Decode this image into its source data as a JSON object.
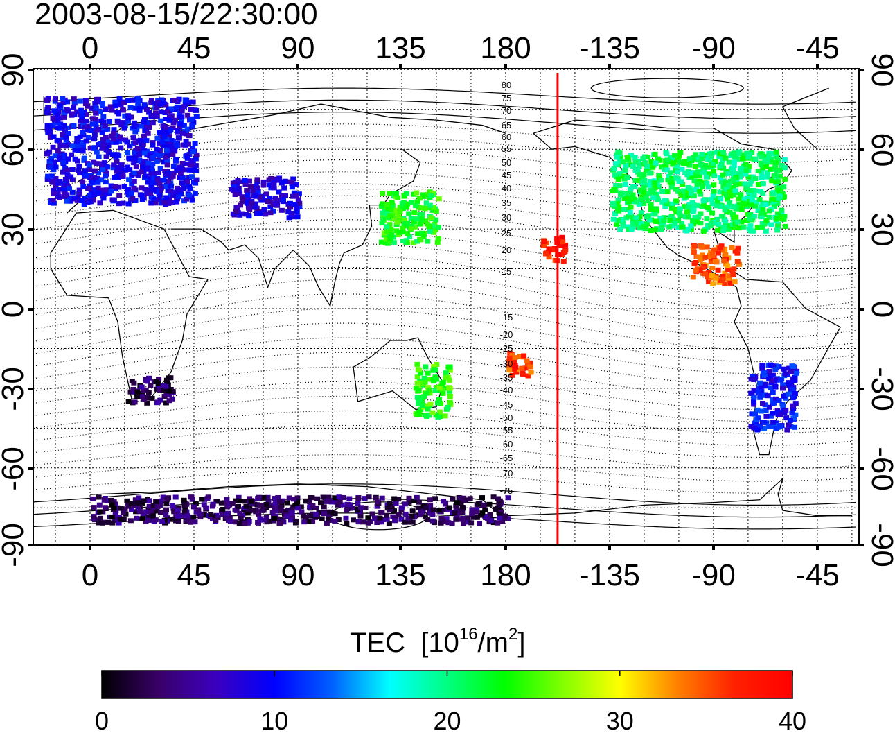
{
  "title": "2003-08-15/22:30:00",
  "colorbar": {
    "label_prefix": "TEC",
    "label_unit_open": "[10",
    "label_unit_exp": "16",
    "label_unit_mid": "/m",
    "label_unit_exp2": "2",
    "label_unit_close": "]",
    "ticks": [
      "0",
      "10",
      "20",
      "30",
      "40"
    ],
    "range": [
      0,
      40
    ],
    "stops": [
      "#000000",
      "#3a006a",
      "#3a00c0",
      "#0000ff",
      "#0060ff",
      "#00ffff",
      "#00ff80",
      "#00ff00",
      "#80ff00",
      "#ffff00",
      "#ff8000",
      "#ff2000",
      "#ff0000"
    ]
  },
  "axes": {
    "lon_ticks": [
      "0",
      "45",
      "90",
      "135",
      "180",
      "-135",
      "-90",
      "-45"
    ],
    "lat_ticks": [
      "90",
      "60",
      "30",
      "0",
      "-30",
      "-60",
      "-90"
    ]
  },
  "contour_labels": [
    "80",
    "75",
    "70",
    "65",
    "60",
    "55",
    "50",
    "45",
    "40",
    "35",
    "30",
    "25",
    "20",
    "15",
    "-15",
    "-20",
    "-25",
    "-30",
    "-35",
    "-40",
    "-45",
    "-50",
    "-55",
    "-60",
    "-65",
    "-70",
    "-75"
  ],
  "marker": {
    "longitude": -157.5,
    "color": "#ff0000"
  },
  "tec_regions": [
    {
      "name": "europe",
      "lon": [
        -20,
        45
      ],
      "lat": [
        40,
        80
      ],
      "value": 9
    },
    {
      "name": "north-america",
      "lon": [
        -135,
        -60
      ],
      "lat": [
        30,
        60
      ],
      "value": 21
    },
    {
      "name": "east-asia",
      "lon": [
        125,
        150
      ],
      "lat": [
        25,
        45
      ],
      "value": 23
    },
    {
      "name": "pacific-hawaii",
      "lon": [
        -165,
        -155
      ],
      "lat": [
        18,
        28
      ],
      "value": 38
    },
    {
      "name": "south-pacific",
      "lon": [
        180,
        190
      ],
      "lat": [
        -25,
        -15
      ],
      "value": 36
    },
    {
      "name": "australia",
      "lon": [
        140,
        155
      ],
      "lat": [
        -40,
        -20
      ],
      "value": 24
    },
    {
      "name": "south-america",
      "lon": [
        -75,
        -55
      ],
      "lat": [
        -45,
        -20
      ],
      "value": 10
    },
    {
      "name": "south-africa",
      "lon": [
        15,
        35
      ],
      "lat": [
        -35,
        -25
      ],
      "value": 3
    },
    {
      "name": "central-asia",
      "lon": [
        60,
        90
      ],
      "lat": [
        35,
        50
      ],
      "value": 8
    },
    {
      "name": "central-america",
      "lon": [
        -100,
        -80
      ],
      "lat": [
        10,
        25
      ],
      "value": 35
    },
    {
      "name": "antarctica",
      "lon": [
        0,
        180
      ],
      "lat": [
        -80,
        -70
      ],
      "value": 3
    }
  ]
}
